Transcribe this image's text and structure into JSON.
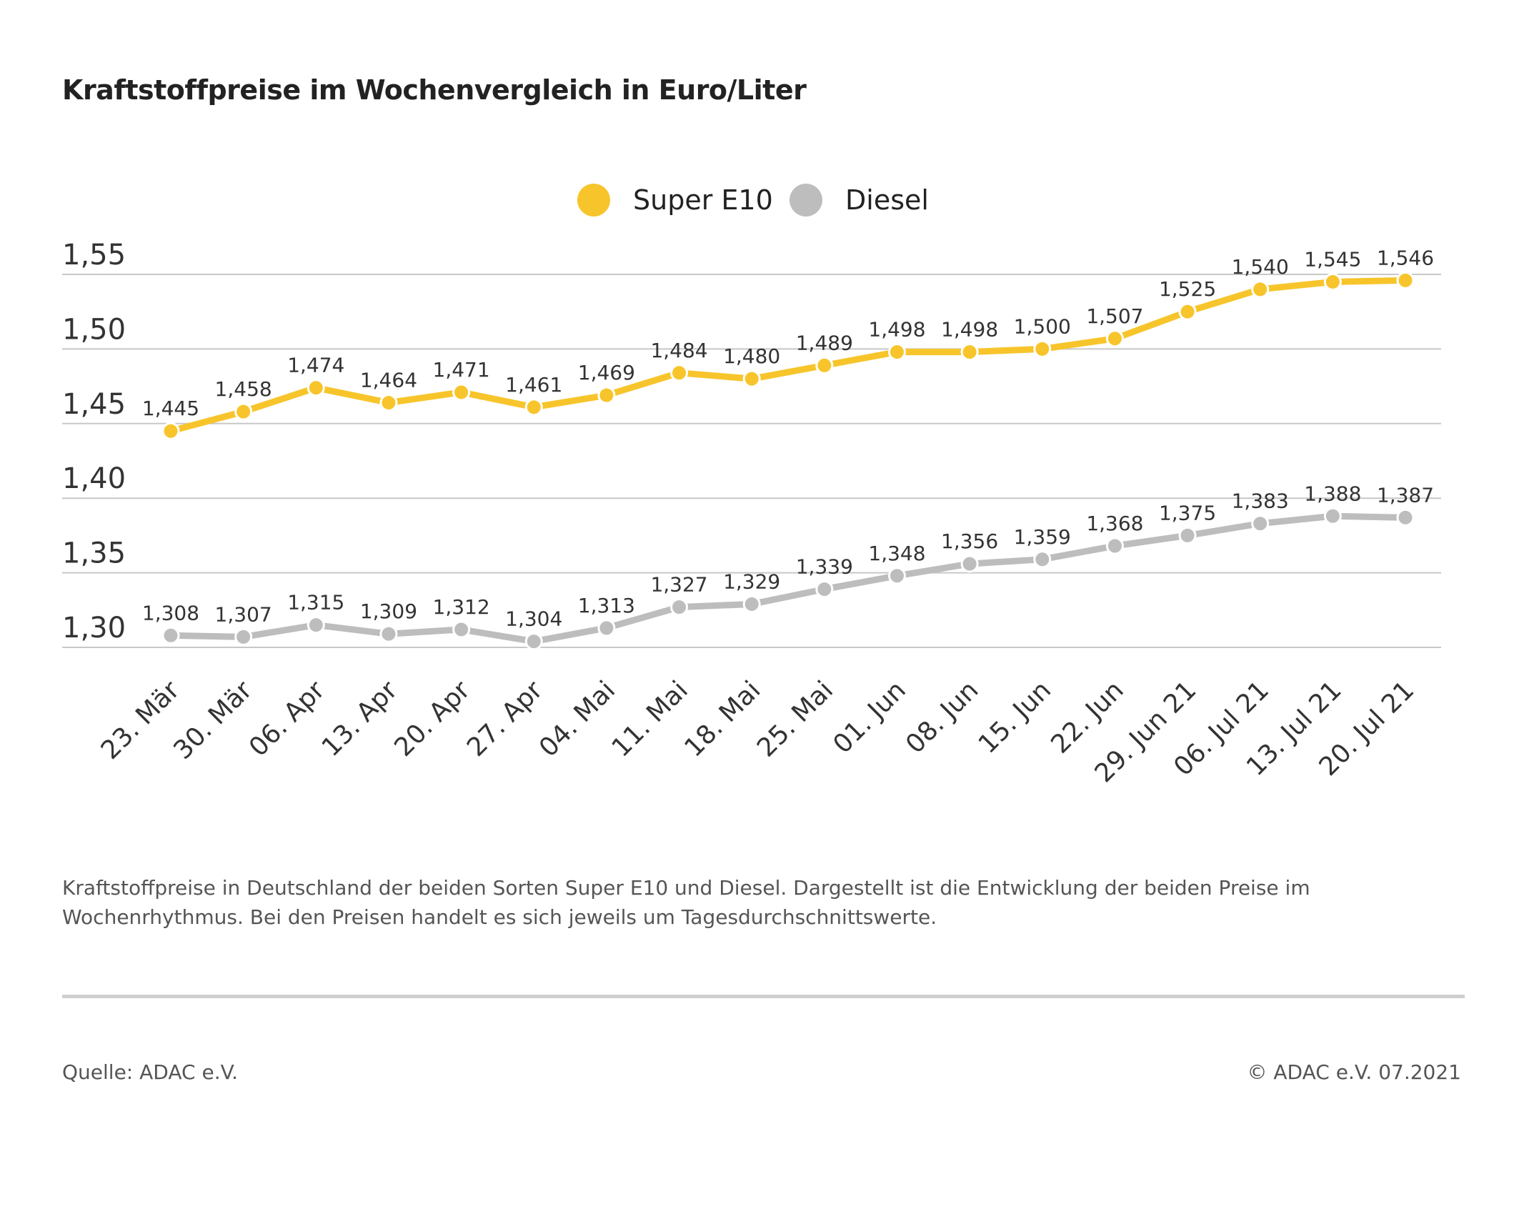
{
  "chart_data": {
    "type": "line",
    "title": "Kraftstoffpreise im Wochenvergleich in Euro/Liter",
    "categories": [
      "23. Mär",
      "30. Mär",
      "06. Apr",
      "13. Apr",
      "20. Apr",
      "27. Apr",
      "04. Mai",
      "11. Mai",
      "18. Mai",
      "25. Mai",
      "01. Jun",
      "08. Jun",
      "15. Jun",
      "22. Jun",
      "29. Jun 21",
      "06. Jul 21",
      "13. Jul 21",
      "20. Jul 21"
    ],
    "series": [
      {
        "name": "Super E10",
        "color": "#f7c52b",
        "values": [
          1.445,
          1.458,
          1.474,
          1.464,
          1.471,
          1.461,
          1.469,
          1.484,
          1.48,
          1.489,
          1.498,
          1.498,
          1.5,
          1.507,
          1.525,
          1.54,
          1.545,
          1.546
        ],
        "labels": [
          "1,445",
          "1,458",
          "1,474",
          "1,464",
          "1,471",
          "1,461",
          "1,469",
          "1,484",
          "1,480",
          "1,489",
          "1,498",
          "1,498",
          "1,500",
          "1,507",
          "1,525",
          "1,540",
          "1,545",
          "1,546"
        ]
      },
      {
        "name": "Diesel",
        "color": "#bdbdbd",
        "values": [
          1.308,
          1.307,
          1.315,
          1.309,
          1.312,
          1.304,
          1.313,
          1.327,
          1.329,
          1.339,
          1.348,
          1.356,
          1.359,
          1.368,
          1.375,
          1.383,
          1.388,
          1.387
        ],
        "labels": [
          "1,308",
          "1,307",
          "1,315",
          "1,309",
          "1,312",
          "1,304",
          "1,313",
          "1,327",
          "1,329",
          "1,339",
          "1,348",
          "1,356",
          "1,359",
          "1,368",
          "1,375",
          "1,383",
          "1,388",
          "1,387"
        ]
      }
    ],
    "yticks": [
      1.3,
      1.35,
      1.4,
      1.45,
      1.5,
      1.55
    ],
    "ytick_labels": [
      "1,30",
      "1,35",
      "1,40",
      "1,45",
      "1,50",
      "1,55"
    ],
    "ylim": [
      1.3,
      1.55
    ],
    "grid": true,
    "legend": "top-center",
    "xlabel": "",
    "ylabel": ""
  },
  "caption": "Kraftstoffpreise in Deutschland der beiden Sorten Super E10 und Diesel. Dargestellt ist die Entwicklung der beiden Preise im Wochenrhythmus. Bei den Preisen handelt es sich jeweils um Tagesdurchschnittswerte.",
  "footer": {
    "source": "Quelle: ADAC e.V.",
    "copyright": "© ADAC e.V. 07.2021"
  }
}
